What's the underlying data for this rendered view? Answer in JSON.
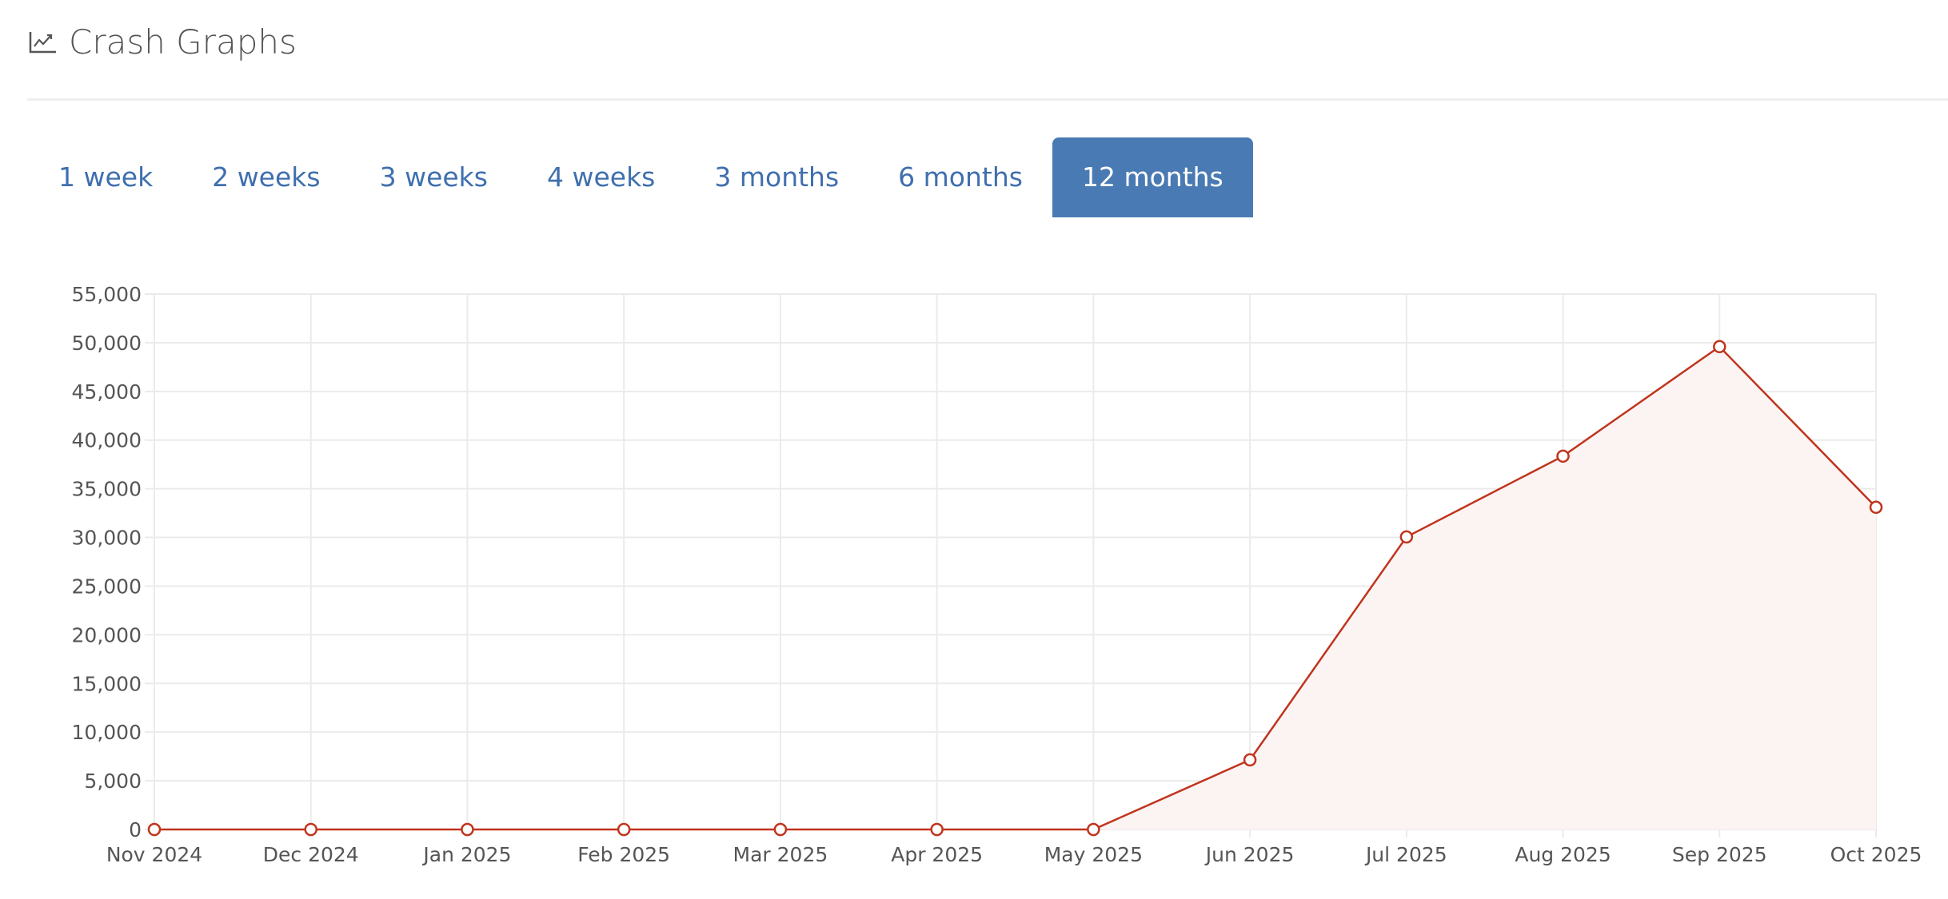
{
  "header": {
    "title": "Crash Graphs",
    "icon": "line-chart-icon"
  },
  "tabs": [
    {
      "label": "1 week",
      "active": false
    },
    {
      "label": "2 weeks",
      "active": false
    },
    {
      "label": "3 weeks",
      "active": false
    },
    {
      "label": "4 weeks",
      "active": false
    },
    {
      "label": "3 months",
      "active": false
    },
    {
      "label": "6 months",
      "active": false
    },
    {
      "label": "12 months",
      "active": true
    }
  ],
  "chart_data": {
    "type": "area",
    "categories": [
      "Nov 2024",
      "Dec 2024",
      "Jan 2025",
      "Feb 2025",
      "Mar 2025",
      "Apr 2025",
      "May 2025",
      "Jun 2025",
      "Jul 2025",
      "Aug 2025",
      "Sep 2025",
      "Oct 2025"
    ],
    "series": [
      {
        "values": [
          0,
          0,
          0,
          0,
          0,
          0,
          0,
          7150,
          30050,
          38350,
          49600,
          33100
        ],
        "color": "#c0341d",
        "fill": "#fbf4f3"
      }
    ],
    "ylim": [
      0,
      55000
    ],
    "yticks": [
      0,
      5000,
      10000,
      15000,
      20000,
      25000,
      30000,
      35000,
      40000,
      45000,
      50000,
      55000
    ],
    "ytick_labels": [
      "0",
      "5,000",
      "10,000",
      "15,000",
      "20,000",
      "25,000",
      "30,000",
      "35,000",
      "40,000",
      "45,000",
      "50,000",
      "55,000"
    ],
    "grid": true,
    "title": "",
    "xlabel": "",
    "ylabel": ""
  }
}
